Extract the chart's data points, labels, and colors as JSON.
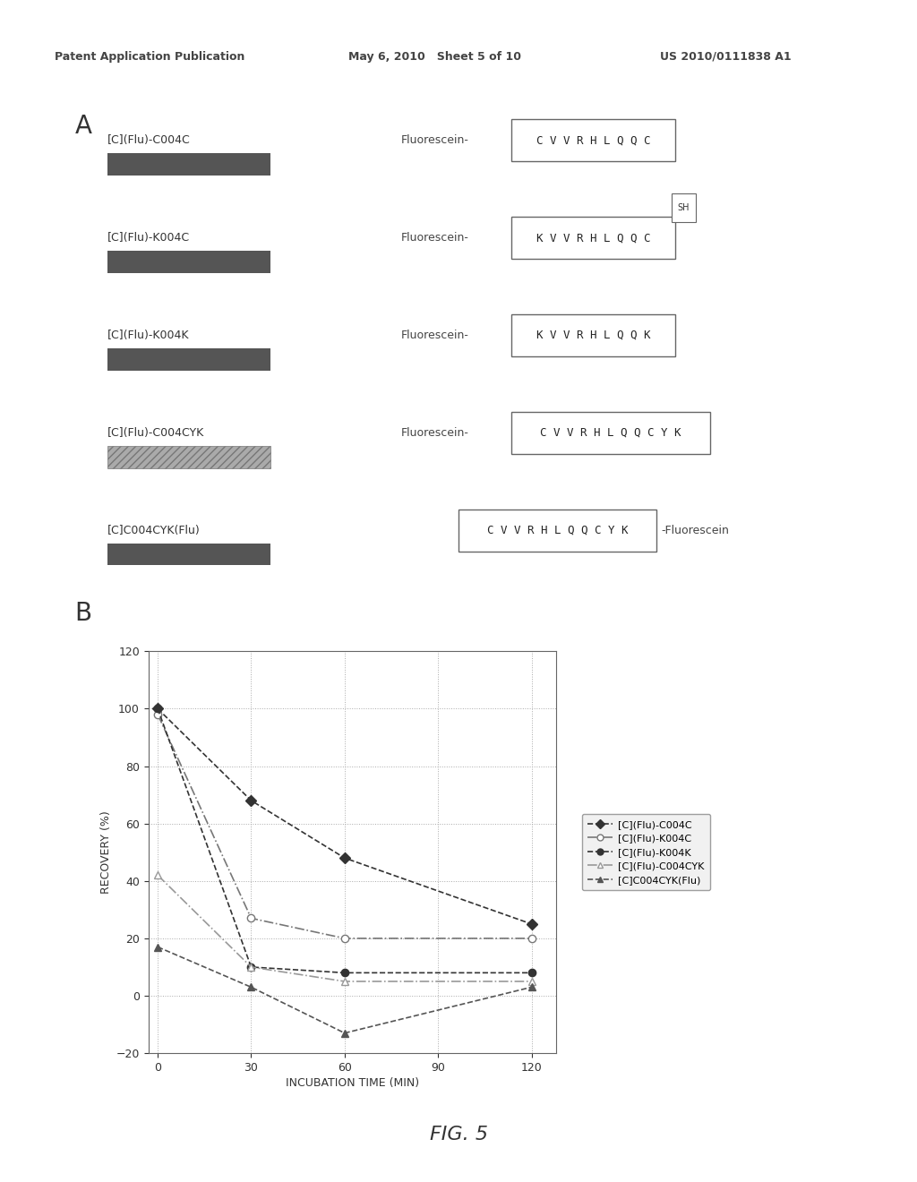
{
  "header_left": "Patent Application Publication",
  "header_mid": "May 6, 2010   Sheet 5 of 10",
  "header_right": "US 2010/0111838 A1",
  "fig_label": "FIG. 5",
  "panel_A_label": "A",
  "panel_B_label": "B",
  "compounds": [
    {
      "name": "[C](Flu)-C004C",
      "bar_color": "#555555",
      "bar_style": "solid",
      "has_left_label": true,
      "left_label": "Fluorescein-",
      "sequence": "CVVRHLQQC",
      "sh_label": null,
      "right_label": null
    },
    {
      "name": "[C](Flu)-K004C",
      "bar_color": "#555555",
      "bar_style": "solid",
      "has_left_label": true,
      "left_label": "Fluorescein-",
      "sequence": "KVVRHLQQC",
      "sh_label": "SH",
      "right_label": null
    },
    {
      "name": "[C](Flu)-K004K",
      "bar_color": "#555555",
      "bar_style": "solid",
      "has_left_label": true,
      "left_label": "Fluorescein-",
      "sequence": "KVVRHLQQK",
      "sh_label": null,
      "right_label": null
    },
    {
      "name": "[C](Flu)-C004CYK",
      "bar_color": "#888888",
      "bar_style": "hatched",
      "has_left_label": true,
      "left_label": "Fluorescein-",
      "sequence": "CVVRHLQQCYK",
      "sh_label": null,
      "right_label": null
    },
    {
      "name": "[C]C004CYK(Flu)",
      "bar_color": "#555555",
      "bar_style": "solid",
      "has_left_label": false,
      "left_label": "",
      "sequence": "CVVRHLQQCYK",
      "sh_label": null,
      "right_label": "-Fluorescein"
    }
  ],
  "plot": {
    "x": [
      0,
      30,
      60,
      120
    ],
    "series": [
      {
        "label": "[C](Flu)-C004C",
        "y": [
          100,
          68,
          48,
          25
        ],
        "marker": "D",
        "markersize": 6,
        "linestyle": "--",
        "fillstyle": "full"
      },
      {
        "label": "[C](Flu)-K004C",
        "y": [
          98,
          27,
          20,
          20
        ],
        "marker": "o",
        "markersize": 6,
        "linestyle": "-.",
        "fillstyle": "none"
      },
      {
        "label": "[C](Flu)-K004K",
        "y": [
          100,
          10,
          8,
          8
        ],
        "marker": "o",
        "markersize": 6,
        "linestyle": "--",
        "fillstyle": "full"
      },
      {
        "label": "[C](Flu)-C004CYK",
        "y": [
          42,
          10,
          5,
          5
        ],
        "marker": "^",
        "markersize": 6,
        "linestyle": "-.",
        "fillstyle": "none"
      },
      {
        "label": "[C]C004CYK(Flu)",
        "y": [
          17,
          3,
          -13,
          3
        ],
        "marker": "^",
        "markersize": 6,
        "linestyle": "--",
        "fillstyle": "full"
      }
    ],
    "ylabel": "RECOVERY (%)",
    "xlabel": "INCUBATION TIME (MIN)",
    "ylim": [
      -20,
      120
    ],
    "yticks": [
      -20,
      0,
      20,
      40,
      60,
      80,
      100,
      120
    ],
    "xticks": [
      0,
      30,
      60,
      90,
      120
    ]
  },
  "bg_color": "#d8d8d8",
  "page_bg": "#ffffff"
}
